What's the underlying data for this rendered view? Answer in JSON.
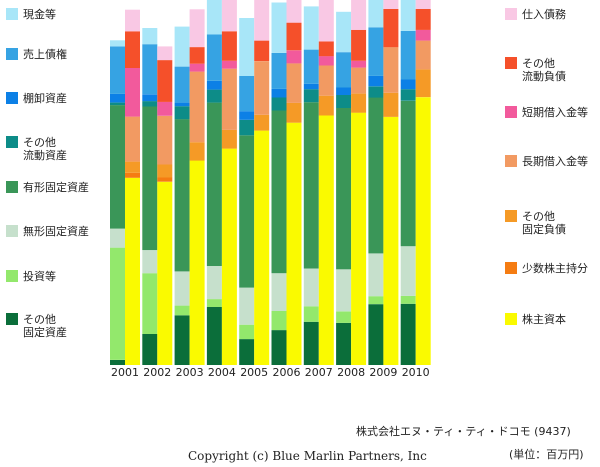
{
  "chart_data": {
    "type": "bar",
    "stacked": "two-column-per-year",
    "title": "",
    "xlabel": "",
    "ylabel": "",
    "categories": [
      "2001",
      "2002",
      "2003",
      "2004",
      "2005",
      "2006",
      "2007",
      "2008",
      "2009",
      "2010"
    ],
    "assets": [
      {
        "key": "other_fixed",
        "name": "その他\n固定資産",
        "color": "#0b6e3a",
        "values": [
          1.4,
          8.6,
          13.8,
          16.1,
          7.2,
          9.7,
          12.0,
          11.7,
          16.9,
          17.0
        ]
      },
      {
        "key": "investments",
        "name": "投資等",
        "color": "#93e86c",
        "values": [
          31.2,
          16.9,
          2.7,
          2.2,
          4.0,
          5.3,
          4.3,
          3.2,
          2.2,
          2.2
        ]
      },
      {
        "key": "intangible",
        "name": "無形固定資産",
        "color": "#c6e0cc",
        "values": [
          5.3,
          6.4,
          9.5,
          9.2,
          10.3,
          10.5,
          10.5,
          11.7,
          11.9,
          13.8
        ]
      },
      {
        "key": "tangible",
        "name": "有形固定資産",
        "color": "#3a9658",
        "values": [
          34.3,
          39.9,
          42.3,
          45.4,
          42.3,
          45.2,
          46.2,
          44.8,
          43.3,
          40.4
        ]
      },
      {
        "key": "other_current",
        "name": "その他\n流動資産",
        "color": "#0d8c88",
        "values": [
          0.7,
          1.5,
          3.6,
          3.6,
          4.3,
          3.6,
          3.6,
          3.6,
          3.1,
          3.2
        ]
      },
      {
        "key": "inventories",
        "name": "棚卸資産",
        "color": "#0c80e6",
        "values": [
          2.4,
          1.9,
          1.0,
          2.4,
          2.4,
          2.4,
          1.5,
          2.1,
          2.9,
          2.7
        ]
      },
      {
        "key": "receivables",
        "name": "売上債権",
        "color": "#36a3e3",
        "values": [
          13.2,
          13.9,
          10.0,
          12.9,
          9.8,
          10.0,
          9.5,
          9.8,
          13.5,
          13.5
        ]
      },
      {
        "key": "cash",
        "name": "現金等",
        "color": "#a8e6f8",
        "values": [
          1.7,
          4.5,
          11.1,
          10.7,
          16.1,
          14.0,
          12.0,
          11.2,
          8.8,
          12.0
        ]
      }
    ],
    "liabilities_equity": [
      {
        "key": "equity",
        "name": "株主資本",
        "color": "#fafa00",
        "values": [
          52.0,
          50.9,
          56.8,
          60.1,
          65.1,
          67.3,
          69.3,
          70.1,
          68.9,
          74.4
        ]
      },
      {
        "key": "minority",
        "name": "少数株主持分",
        "color": "#f57c12",
        "values": [
          1.4,
          1.2,
          0.0,
          0.0,
          0.0,
          0.0,
          0.0,
          0.0,
          0.0,
          0.0
        ]
      },
      {
        "key": "other_fixed_liab",
        "name": "その他\n固定負債",
        "color": "#f59a26",
        "values": [
          3.1,
          3.6,
          5.1,
          5.2,
          4.4,
          5.5,
          5.5,
          5.3,
          6.7,
          7.7
        ]
      },
      {
        "key": "long_term_debt",
        "name": "長期借入金等",
        "color": "#f29a62",
        "values": [
          12.5,
          13.5,
          19.6,
          17.0,
          14.9,
          11.0,
          8.4,
          7.2,
          12.7,
          8.0
        ]
      },
      {
        "key": "short_term_debt",
        "name": "短期借入金等",
        "color": "#f25a9c",
        "values": [
          13.5,
          3.9,
          2.2,
          2.2,
          0.0,
          3.6,
          2.6,
          1.9,
          0.0,
          3.0
        ]
      },
      {
        "key": "other_current_liab",
        "name": "その他\n流動負債",
        "color": "#f5502a",
        "values": [
          10.2,
          11.6,
          4.6,
          8.2,
          5.7,
          7.7,
          4.1,
          8.6,
          10.6,
          5.8
        ]
      },
      {
        "key": "payables",
        "name": "仕入債務",
        "color": "#f9c8e4",
        "values": [
          6.0,
          3.8,
          10.5,
          9.4,
          12.5,
          12.3,
          13.1,
          10.1,
          9.3,
          10.0
        ]
      }
    ],
    "legend": "left and right columns"
  },
  "footer": {
    "company": "株式会社エヌ・ティ・ティ・ドコモ (9437)",
    "unit": "(単位：百万円)",
    "copyright": "Copyright (c) Blue Marlin Partners, Inc"
  }
}
